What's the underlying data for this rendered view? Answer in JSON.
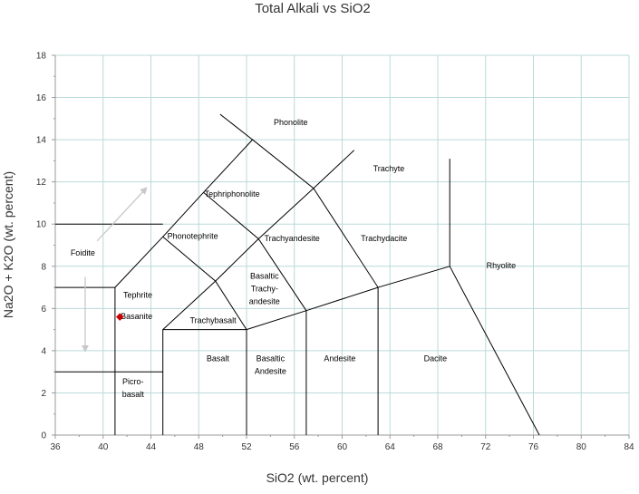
{
  "chart_data": {
    "type": "scatter",
    "title": "Total Alkali vs SiO2",
    "xlabel": "SiO2 (wt. percent)",
    "ylabel": "Na2O + K2O (wt. percent)",
    "xlim": [
      36,
      84
    ],
    "ylim": [
      0,
      18
    ],
    "x_ticks": [
      36,
      40,
      44,
      48,
      52,
      56,
      60,
      64,
      68,
      72,
      76,
      80,
      84
    ],
    "y_ticks": [
      0,
      2,
      4,
      6,
      8,
      10,
      12,
      14,
      16,
      18
    ],
    "grid": true,
    "colors": {
      "gridline": "#bcd9d9",
      "boundary": "#000000",
      "sample_point": "#cc0000",
      "arrow": "#c8c8c8",
      "plot_border": "#999999"
    },
    "boundaries": [
      [
        [
          41,
          0
        ],
        [
          41,
          7
        ],
        [
          45,
          9.4
        ],
        [
          48.4,
          11.5
        ],
        [
          52.5,
          14
        ],
        [
          57.6,
          11.7
        ],
        [
          63,
          7
        ],
        [
          69,
          8
        ],
        [
          76.5,
          0
        ]
      ],
      [
        [
          45,
          0
        ],
        [
          45,
          5
        ],
        [
          52,
          5
        ],
        [
          57,
          5.9
        ],
        [
          63,
          7
        ]
      ],
      [
        [
          52,
          0
        ],
        [
          52,
          5
        ]
      ],
      [
        [
          57,
          0
        ],
        [
          57,
          5.9
        ]
      ],
      [
        [
          63,
          0
        ],
        [
          63,
          7
        ]
      ],
      [
        [
          45,
          5
        ],
        [
          49.4,
          7.3
        ],
        [
          53,
          9.3
        ],
        [
          57.6,
          11.7
        ],
        [
          61,
          13.5
        ]
      ],
      [
        [
          45,
          9.4
        ],
        [
          49.4,
          7.3
        ],
        [
          52,
          5
        ]
      ],
      [
        [
          48.4,
          11.5
        ],
        [
          53,
          9.3
        ],
        [
          57,
          5.9
        ]
      ],
      [
        [
          52.5,
          14
        ],
        [
          49.8,
          15.2
        ]
      ],
      [
        [
          69,
          8
        ],
        [
          69,
          13.1
        ]
      ],
      [
        [
          36,
          10
        ],
        [
          45,
          10
        ]
      ],
      [
        [
          36,
          7
        ],
        [
          41,
          7
        ]
      ],
      [
        [
          36,
          3
        ],
        [
          41,
          3
        ],
        [
          45,
          3
        ]
      ]
    ],
    "field_labels": [
      {
        "text": "Foidite",
        "x": 38.3,
        "y": 8.5
      },
      {
        "text": "Picro-",
        "x": 42.5,
        "y": 2.4
      },
      {
        "text": "basalt",
        "x": 42.5,
        "y": 1.8
      },
      {
        "text": "Basalt",
        "x": 49.6,
        "y": 3.5
      },
      {
        "text": "Basaltic",
        "x": 54,
        "y": 3.5
      },
      {
        "text": "Andesite",
        "x": 54,
        "y": 2.9
      },
      {
        "text": "Andesite",
        "x": 59.8,
        "y": 3.5
      },
      {
        "text": "Dacite",
        "x": 67.8,
        "y": 3.5
      },
      {
        "text": "Rhyolite",
        "x": 73.3,
        "y": 7.9
      },
      {
        "text": "Trachybasalt",
        "x": 49.2,
        "y": 5.3
      },
      {
        "text": "Basaltic",
        "x": 53.5,
        "y": 7.4
      },
      {
        "text": "Trachy-",
        "x": 53.5,
        "y": 6.8
      },
      {
        "text": "andesite",
        "x": 53.5,
        "y": 6.2
      },
      {
        "text": "Trachyandesite",
        "x": 55.8,
        "y": 9.2
      },
      {
        "text": "Trachydacite",
        "x": 63.5,
        "y": 9.2
      },
      {
        "text": "Trachyte",
        "x": 63.9,
        "y": 12.5
      },
      {
        "text": "Tephrite",
        "x": 42.9,
        "y": 6.5
      },
      {
        "text": "Basanite",
        "x": 42.8,
        "y": 5.5
      },
      {
        "text": "Phonotephrite",
        "x": 47.5,
        "y": 9.3
      },
      {
        "text": "Tephriphonolite",
        "x": 50.8,
        "y": 11.3
      },
      {
        "text": "Phonolite",
        "x": 55.7,
        "y": 14.7
      }
    ],
    "arrows": [
      {
        "from": [
          39.5,
          9.2
        ],
        "to": [
          43.6,
          11.7
        ]
      },
      {
        "from": [
          38.5,
          7.5
        ],
        "to": [
          38.5,
          4.0
        ]
      }
    ],
    "points": [
      {
        "x": 41.4,
        "y": 5.6
      }
    ]
  }
}
